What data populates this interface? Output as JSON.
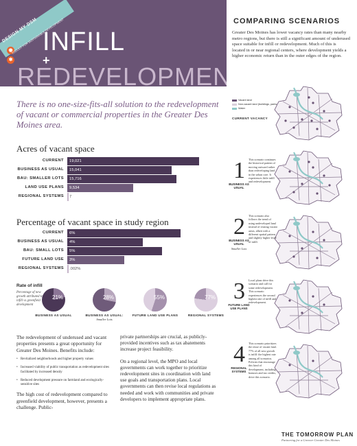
{
  "header": {
    "badge_label": "DESIGN MY DSM",
    "badge_sub": "TOOLKIT FOR SUSTAINABLE DEVELOPMENT",
    "title_line1": "INFILL",
    "title_plus": "+",
    "title_line2": "REDEVELOPMENT"
  },
  "comparing": {
    "title": "COMPARING SCENARIOS",
    "body": "Greater Des Moines has lower vacancy rates than many nearby metro regions, but there is still a significant amount of underused space suitable for infill or redevelopment. Much of this is located in or near regional centers, where development yields a higher economic return than in the outer edges of the region."
  },
  "tagline": "There is no one-size-fits-all solution to the redevelopment of vacant or commercial properties in the Greater Des Moines area.",
  "acres_chart": {
    "title": "Acres of vacant space",
    "chart_data": {
      "type": "bar",
      "categories": [
        "CURRENT",
        "BUSINESS AS USUAL",
        "BAU: SMALLER LOTS",
        "LAND USE PLANS",
        "REGIONAL SYSTEMS"
      ],
      "values": [
        19021,
        15041,
        15716,
        9534,
        7
      ],
      "labels": [
        "19,021",
        "15,041",
        "15,716",
        "9,534",
        "7"
      ],
      "colors": [
        "#4a3756",
        "#4a3756",
        "#4a3756",
        "#6f5b7a",
        "#c6b5c9"
      ],
      "xlim": [
        0,
        19021
      ]
    }
  },
  "percent_chart": {
    "title": "Percentage of vacant space in study region",
    "chart_data": {
      "type": "bar",
      "categories": [
        "CURRENT",
        "BUSINESS AS USUAL",
        "BAU: SMALL LOTS",
        "FUTURE LAND USE",
        "REGIONAL SYSTEMS"
      ],
      "values": [
        6,
        4,
        5,
        3,
        0.002
      ],
      "labels": [
        "6%",
        "4%",
        "5%",
        "3%",
        ".002%"
      ],
      "colors": [
        "#4a3756",
        "#4a3756",
        "#4a3756",
        "#6f5b7a",
        "#c6b5c9"
      ],
      "xlim": [
        0,
        6
      ]
    }
  },
  "rate": {
    "title": "Rate of infill",
    "note": "Percentage of new growth attributed to infill vs greenfield development",
    "chart_data": {
      "type": "pie",
      "categories": [
        "BUSINESS AS USUAL",
        "BUSINESS AS USUAL: Smaller Lots",
        "FUTURE LAND USE PLANS",
        "REGIONAL SYSTEMS"
      ],
      "values": [
        21,
        28,
        55,
        77
      ],
      "labels": [
        "21%",
        "28%",
        "55%",
        "77%"
      ],
      "colors": [
        "#4a3756",
        "#6f5b7a",
        "#a591ad",
        "#dccfdf"
      ]
    },
    "donuts": [
      {
        "label": "BUSINESS AS USUAL",
        "sub": ""
      },
      {
        "label": "BUSINESS AS USUAL:",
        "sub": "Smaller Lots"
      },
      {
        "label": "FUTURE LAND USE PLANS",
        "sub": ""
      },
      {
        "label": "REGIONAL SYSTEMS",
        "sub": ""
      }
    ]
  },
  "body": {
    "lead": "The redevelopment of underused and vacant properties presents a great opportunity for Greater Des Moines. Benefits include:",
    "bullets": [
      "Revitalized neighborhoods and higher property values",
      "Increased viability of public transportation as redevelopment sites facilitated by increased density",
      "Reduced development pressure on farmland and ecologically-sensitive sites"
    ],
    "p1": "The high cost of redevelopment compared to greenfield development, however, presents a challenge. Public-",
    "p2": "private partnerships are crucial, as publicly-provided incentives such as tax abatements increase project feasibility.",
    "p3": "On a regional level, the MPO and local governments can work together to prioritize redevelopment sites in coordination with land use goals and transportation plans. Local governments can then revise local regulations as needed and work with communities and private developers to implement appropriate plans."
  },
  "legend": [
    {
      "label": "Vacant land",
      "color": "#6a5475"
    },
    {
      "label": "Non-vacant land (buildings, parks, roads, etc.)",
      "color": "#d9d0dc"
    },
    {
      "label": "Water",
      "color": "#8fc9c8"
    }
  ],
  "current_label": "CURRENT VACANCY",
  "scenarios": [
    {
      "num": "1",
      "name": "BUSINESS AS USUAL",
      "sub": "",
      "desc": "This scenario continues the historical pattern of moving outward rather than redeveloping land in the urban core. It experiences little infill and redevelopment."
    },
    {
      "num": "2",
      "name": "BUSINESS AS USUAL",
      "sub": "Smaller Lots",
      "desc": "This scenario also follows the trend of using undeveloped land instead of reusing vacant areas, albeit with a different spatial pattern and slightly higher level of infill."
    },
    {
      "num": "3",
      "name": "FUTURE LAND USE PLANS",
      "sub": "",
      "desc": "Local plans drive this scenario and call for some redevelopment. This scenario experiences the second highest rate of infill and redevelopment."
    },
    {
      "num": "4",
      "name": "REGIONAL SYSTEMS",
      "sub": "",
      "desc": "This scenario prioritizes the reuse of vacant land. 77% of all new growth is infill: the highest rate among all scenarios. Policies that encourage this kind of development, including bonuses and tax credits, drive this scenario."
    }
  ],
  "footer": {
    "brand": "THE TOMORROW PLAN",
    "sub": "Partnering for a Greener Greater Des Moines"
  }
}
